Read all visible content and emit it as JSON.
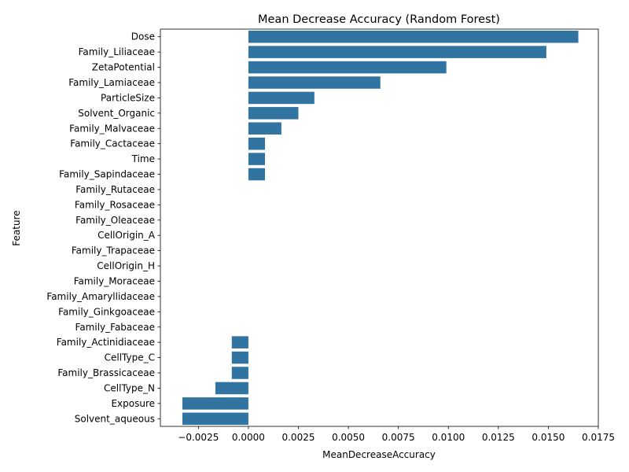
{
  "chart_data": {
    "type": "bar",
    "orientation": "horizontal",
    "title": "Mean Decrease Accuracy (Random Forest)",
    "xlabel": "MeanDecreaseAccuracy",
    "ylabel": "Feature",
    "xlim": [
      -0.0044,
      0.0175
    ],
    "x_ticks": [
      -0.0025,
      0.0,
      0.0025,
      0.005,
      0.0075,
      0.01,
      0.0125,
      0.015,
      0.0175
    ],
    "x_tick_labels": [
      "−0.0025",
      "0.0000",
      "0.0025",
      "0.0050",
      "0.0075",
      "0.0100",
      "0.0125",
      "0.0150",
      "0.0175"
    ],
    "bar_color": "#3274a1",
    "grid": false,
    "categories": [
      "Dose",
      "Family_Liliaceae",
      "ZetaPotential",
      "Family_Lamiaceae",
      "ParticleSize",
      "Solvent_Organic",
      "Family_Malvaceae",
      "Family_Cactaceae",
      "Time",
      "Family_Sapindaceae",
      "Family_Rutaceae",
      "Family_Rosaceae",
      "Family_Oleaceae",
      "CellOrigin_A",
      "Family_Trapaceae",
      "CellOrigin_H",
      "Family_Moraceae",
      "Family_Amaryllidaceae",
      "Family_Ginkgoaceae",
      "Family_Fabaceae",
      "Family_Actinidiaceae ",
      "CellType_C",
      "Family_Brassicaceae",
      "CellType_N",
      "Exposure",
      "Solvent_aqueous"
    ],
    "values": [
      0.0165,
      0.0149,
      0.0099,
      0.0066,
      0.0033,
      0.0025,
      0.00165,
      0.00083,
      0.00083,
      0.00083,
      0.0,
      0.0,
      0.0,
      0.0,
      0.0,
      0.0,
      0.0,
      0.0,
      0.0,
      0.0,
      -0.00083,
      -0.00083,
      -0.00083,
      -0.00165,
      -0.0033,
      -0.0033
    ]
  }
}
